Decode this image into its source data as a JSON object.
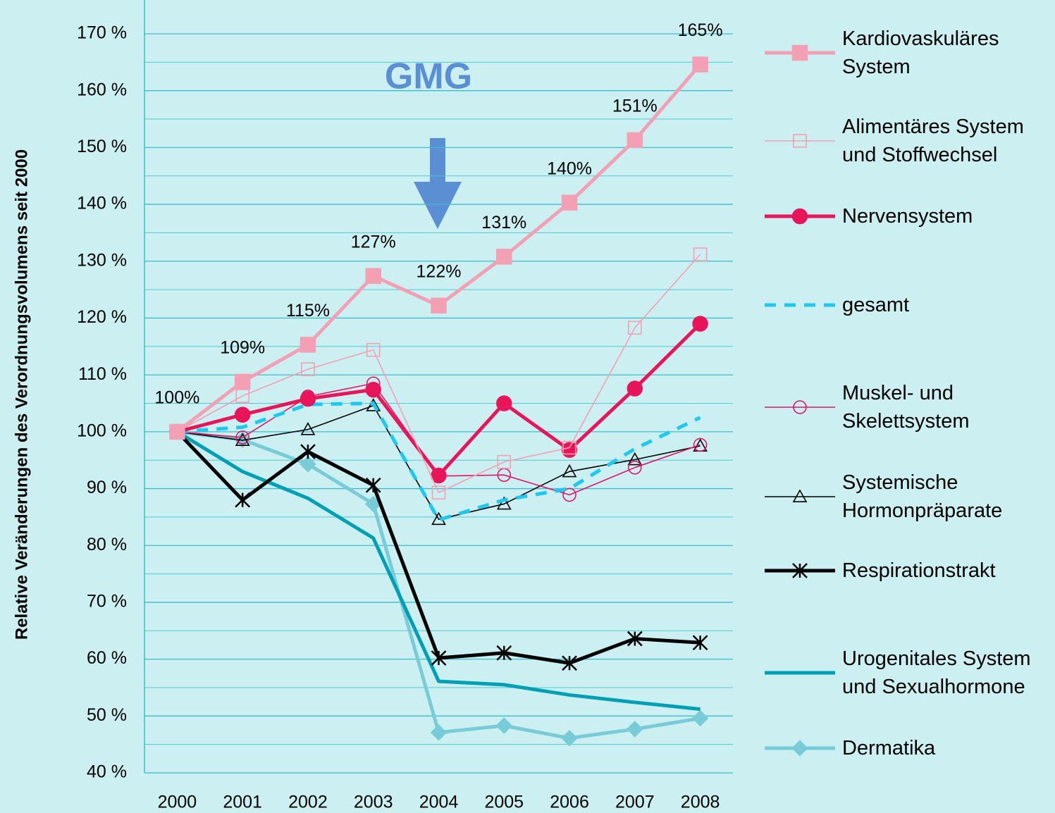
{
  "chart_data": {
    "type": "line",
    "annotation": "GMG",
    "y_label": "Relative Veränderungen des Verordnungsvolumens seit 2000",
    "categories": [
      "2000",
      "2001",
      "2002",
      "2003",
      "2004",
      "2005",
      "2006",
      "2007",
      "2008"
    ],
    "ylim": [
      40,
      170
    ],
    "yticks": [
      {
        "value": 40,
        "label": "40 %"
      },
      {
        "value": 50,
        "label": "50 %"
      },
      {
        "value": 60,
        "label": "60 %"
      },
      {
        "value": 70,
        "label": "70 %"
      },
      {
        "value": 80,
        "label": "80 %"
      },
      {
        "value": 90,
        "label": "90 %"
      },
      {
        "value": 100,
        "label": "100 %"
      },
      {
        "value": 110,
        "label": "110 %"
      },
      {
        "value": 120,
        "label": "120 %"
      },
      {
        "value": 130,
        "label": "130 %"
      },
      {
        "value": 140,
        "label": "140 %"
      },
      {
        "value": 150,
        "label": "150 %"
      },
      {
        "value": 160,
        "label": "160 %"
      },
      {
        "value": 170,
        "label": "170 %"
      }
    ],
    "minor_yticks": [
      45,
      55,
      65,
      75,
      85,
      95,
      105,
      115,
      125,
      135,
      145,
      155,
      165
    ],
    "grid": true,
    "legend": "right",
    "series": [
      {
        "name": "Kardiovaskuläres System",
        "color": "#f4a0b4",
        "weight": "thick",
        "marker": "square",
        "filled": true,
        "values": [
          100,
          108.8,
          115.3,
          127.4,
          122.2,
          130.8,
          140.3,
          151.3,
          164.6
        ],
        "value_labels": [
          "100%",
          "109%",
          "115%",
          "127%",
          "122%",
          "131%",
          "140%",
          "151%",
          "165%"
        ]
      },
      {
        "name": "Alimentäres System und Stoffwechsel",
        "color": "#f4a0b4",
        "weight": "thin",
        "marker": "square",
        "filled": false,
        "values": [
          100,
          106.3,
          111,
          114.4,
          89.3,
          94.7,
          97.2,
          118.3,
          131.2
        ]
      },
      {
        "name": "Nervensystem",
        "color": "#e8155a",
        "weight": "thick",
        "marker": "circle",
        "filled": true,
        "values": [
          100,
          103,
          105.8,
          107.4,
          92.3,
          105,
          96.8,
          107.6,
          119
        ]
      },
      {
        "name": "gesamt",
        "color": "#1ec8f0",
        "weight": "thick",
        "marker": "none",
        "dashed": true,
        "values": [
          100,
          100.8,
          104.8,
          105,
          84.5,
          88,
          90,
          97,
          102.5
        ]
      },
      {
        "name": "Muskel- und Skelettsystem",
        "color": "#e0156a",
        "weight": "thin",
        "marker": "circle",
        "filled": false,
        "values": [
          100,
          99,
          106.2,
          108.5,
          92.2,
          92.4,
          88.9,
          93.7,
          97.7
        ]
      },
      {
        "name": "Systemische Hormonpräparate",
        "color": "#000000",
        "weight": "thin",
        "marker": "triangle",
        "filled": false,
        "values": [
          100,
          98.5,
          100.4,
          104.6,
          84.6,
          87.3,
          93,
          95.1,
          97.5
        ]
      },
      {
        "name": "Respirationstrakt",
        "color": "#000000",
        "weight": "thick",
        "marker": "star",
        "filled": false,
        "values": [
          100,
          88,
          96.5,
          90.6,
          60.2,
          61.1,
          59.3,
          63.6,
          62.9
        ]
      },
      {
        "name": "Urogenitales System und Sexualhormone",
        "color": "#00a0b4",
        "weight": "thick",
        "marker": "none",
        "values": [
          100,
          93,
          88.3,
          81.3,
          56.1,
          55.5,
          53.7,
          52.4,
          51.2
        ]
      },
      {
        "name": "Dermatika",
        "color": "#78ccd8",
        "weight": "thick",
        "marker": "diamond",
        "filled": true,
        "values": [
          100,
          98.6,
          94.3,
          87.3,
          47.1,
          48.3,
          46.1,
          47.7,
          49.6
        ]
      }
    ]
  }
}
